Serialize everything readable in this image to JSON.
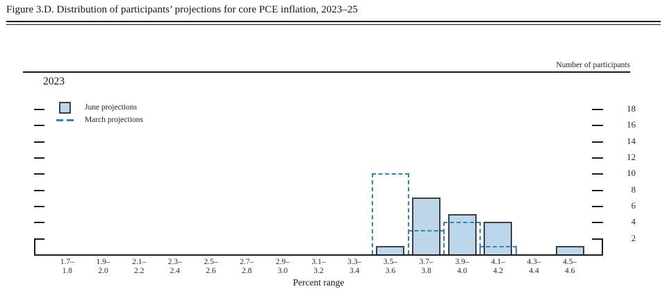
{
  "title": "Figure 3.D. Distribution of participants’ projections for core PCE inflation, 2023–25",
  "header": {
    "right_axis_title": "Number of participants"
  },
  "panel": {
    "year": "2023"
  },
  "legend": [
    {
      "label": "June projections"
    },
    {
      "label": "March projections"
    }
  ],
  "colors": {
    "bar_fill": "#BDD7EA",
    "bar_border": "#3C4043",
    "march_dash": "#2E86BA",
    "axis": "#1B1B1B"
  },
  "chart_data": {
    "type": "bar",
    "subtype": "histogram with dashed outline of previous projections",
    "title": "2023",
    "xlabel": "Percent range",
    "ylabel": "Number of participants",
    "categories": [
      "1.7–1.8",
      "1.9–2.0",
      "2.1–2.2",
      "2.3–2.4",
      "2.5–2.6",
      "2.7–2.8",
      "2.9–3.0",
      "3.1–3.2",
      "3.3–3.4",
      "3.5–3.6",
      "3.7–3.8",
      "3.9–4.0",
      "4.1–4.2",
      "4.3–4.4",
      "4.5–4.6"
    ],
    "series": [
      {
        "name": "June projections",
        "style": "solid-bar",
        "values": [
          0,
          0,
          0,
          0,
          0,
          0,
          0,
          0,
          0,
          1,
          7,
          5,
          4,
          0,
          1
        ]
      },
      {
        "name": "March projections",
        "style": "dashed-outline",
        "values": [
          0,
          0,
          0,
          0,
          0,
          0,
          0,
          0,
          0,
          10,
          3,
          4,
          1,
          0,
          0
        ]
      }
    ],
    "y_ticks": [
      2,
      4,
      6,
      8,
      10,
      12,
      14,
      16,
      18
    ],
    "ylim": [
      0,
      20
    ],
    "grid": false,
    "legend_position": "upper-left"
  }
}
